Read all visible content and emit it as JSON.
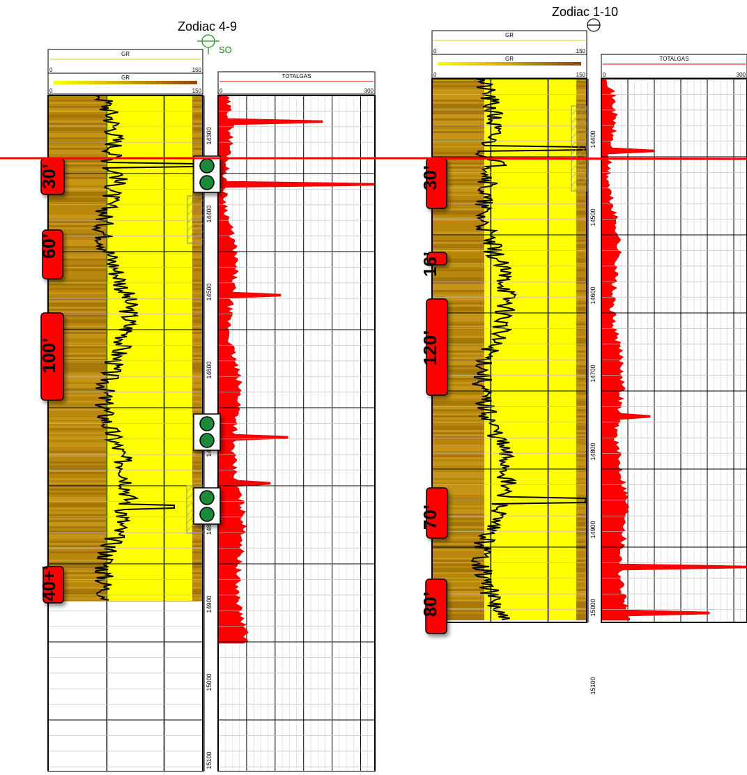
{
  "wells": [
    {
      "name": "Zodiac 4-9",
      "status_label": "SO",
      "gr_header_top": {
        "name": "GR",
        "min": "0",
        "max": "150"
      },
      "gr_header_bottom": {
        "name": "GR",
        "min": "0",
        "max": "150"
      },
      "gas_header": {
        "name": "TOTALGAS",
        "min": "0",
        "max": "300"
      },
      "depth_labels": [
        "14300",
        "14400",
        "14500",
        "14600",
        "14700",
        "14800",
        "14900",
        "15000",
        "15100"
      ],
      "annotations": [
        "30’",
        "60’",
        "100’",
        "40+’"
      ],
      "shows_count": 3
    },
    {
      "name": "Zodiac 1-10",
      "status_label": "",
      "gr_header_top": {
        "name": "GR",
        "min": "0",
        "max": "150"
      },
      "gr_header_bottom": {
        "name": "GR",
        "min": "0",
        "max": "150"
      },
      "gas_header": {
        "name": "TOTALGAS",
        "min": "0",
        "max": "300"
      },
      "depth_labels": [
        "14400",
        "14500",
        "14600",
        "14700",
        "14800",
        "14900",
        "15000",
        "15100"
      ],
      "annotations": [
        "30’",
        "16’",
        "120’",
        "80’",
        "70’"
      ]
    }
  ],
  "colors": {
    "gr_fill": "#b8860b",
    "gr_sand": "#ffff00",
    "gas_fill": "#ff0000",
    "datum_line": "#ff0000",
    "annotation_box": "#ff0000",
    "show_dot": "#1a8a3a",
    "well_symbol": "#1a8a1a"
  }
}
